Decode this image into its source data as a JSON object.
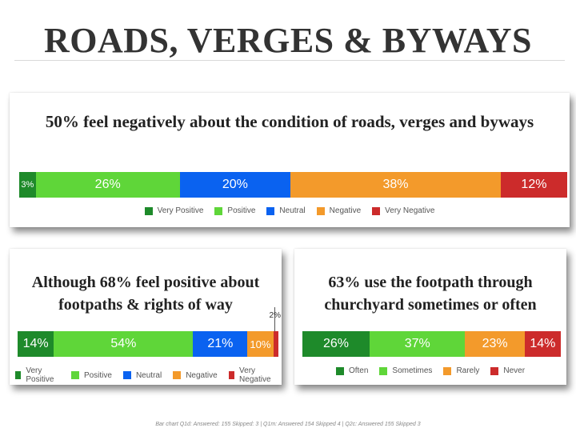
{
  "page": {
    "title": "ROADS, VERGES & BYWAYS",
    "footnote": "Bar chart Q1d: Answered: 155  Skipped: 3 | Q1m: Answered 154 Skipped 4 | Q2c: Answered 155 Skipped 3"
  },
  "colors": {
    "very_positive": "#1e8a2a",
    "positive": "#5fd639",
    "neutral": "#0a62f0",
    "negative": "#f39a2b",
    "very_negative": "#cc2b2b"
  },
  "chart_data": [
    {
      "type": "bar",
      "orientation": "horizontal-stacked",
      "title": "50% feel negatively about the condition of roads, verges and byways",
      "series": [
        {
          "name": "Very Positive",
          "value": 3,
          "label": "3%",
          "color": "#1e8a2a"
        },
        {
          "name": "Positive",
          "value": 26,
          "label": "26%",
          "color": "#5fd639"
        },
        {
          "name": "Neutral",
          "value": 20,
          "label": "20%",
          "color": "#0a62f0"
        },
        {
          "name": "Negative",
          "value": 38,
          "label": "38%",
          "color": "#f39a2b"
        },
        {
          "name": "Very Negative",
          "value": 12,
          "label": "12%",
          "color": "#cc2b2b"
        }
      ],
      "legend_position": "bottom"
    },
    {
      "type": "bar",
      "orientation": "horizontal-stacked",
      "title": "Although 68% feel positive about footpaths & rights of way",
      "series": [
        {
          "name": "Very Positive",
          "value": 14,
          "label": "14%",
          "color": "#1e8a2a"
        },
        {
          "name": "Positive",
          "value": 54,
          "label": "54%",
          "color": "#5fd639"
        },
        {
          "name": "Neutral",
          "value": 21,
          "label": "21%",
          "color": "#0a62f0"
        },
        {
          "name": "Negative",
          "value": 10,
          "label": "10%",
          "color": "#f39a2b"
        },
        {
          "name": "Very Negative",
          "value": 2,
          "label": "2%",
          "color": "#cc2b2b"
        }
      ],
      "legend_position": "bottom"
    },
    {
      "type": "bar",
      "orientation": "horizontal-stacked",
      "title": "63% use the footpath through churchyard sometimes or often",
      "series": [
        {
          "name": "Often",
          "value": 26,
          "label": "26%",
          "color": "#1e8a2a"
        },
        {
          "name": "Sometimes",
          "value": 37,
          "label": "37%",
          "color": "#5fd639"
        },
        {
          "name": "Rarely",
          "value": 23,
          "label": "23%",
          "color": "#f39a2b"
        },
        {
          "name": "Never",
          "value": 14,
          "label": "14%",
          "color": "#cc2b2b"
        }
      ],
      "legend_position": "bottom"
    }
  ]
}
